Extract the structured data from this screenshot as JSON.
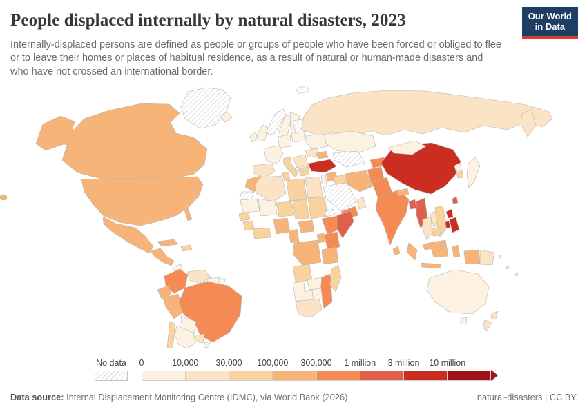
{
  "header": {
    "title": "People displaced internally by natural disasters, 2023",
    "subtitle_lines": [
      "Internally-displaced persons are defined as people or groups of people who have been forced or obliged to flee",
      "or to leave their homes or places of habitual residence, as a result of natural or human-made disasters and",
      "who have not crossed an international border."
    ],
    "logo": {
      "line1": "Our World",
      "line2": "in Data",
      "bg_color": "#1d3d63",
      "accent_color": "#dc3b2e"
    }
  },
  "legend": {
    "no_data_label": "No data",
    "tick_labels": [
      "0",
      "10,000",
      "30,000",
      "100,000",
      "300,000",
      "1 million",
      "3 million",
      "10 million"
    ],
    "bin_colors": [
      "#FDF2E1",
      "#FBE4C5",
      "#F9D29E",
      "#F7B478",
      "#F58A55",
      "#E0614B",
      "#CB2D21",
      "#A01217"
    ],
    "no_data_pattern": "gray-diagonal-hatch"
  },
  "footer": {
    "source_label": "Data source:",
    "source_text": " Internal Displacement Monitoring Centre (IDMC), via World Bank (2026)",
    "right_text": "natural-disasters | CC BY"
  },
  "chart_data": {
    "type": "choropleth-map",
    "title": "People displaced internally by natural disasters",
    "year": "2023",
    "bins": [
      "0–10,000",
      "10,000–30,000",
      "30,000–100,000",
      "100,000–300,000",
      "300,000–1 million",
      "1 million–3 million",
      "3 million–10 million",
      "10 million+",
      "No data"
    ],
    "countries": {
      "greenland": {
        "name": "Greenland",
        "bin": "no-data"
      },
      "iceland": {
        "name": "Iceland",
        "bin": 1
      },
      "svalbard": {
        "name": "Svalbard",
        "bin": "no-data"
      },
      "canada": {
        "name": "Canada",
        "bin": 4
      },
      "usa": {
        "name": "United States",
        "bin": 4
      },
      "mexico": {
        "name": "Mexico",
        "bin": 4
      },
      "central-america": {
        "name": "Central America",
        "bin": 4
      },
      "panama": {
        "name": "Panama",
        "bin": 1
      },
      "cuba": {
        "name": "Cuba",
        "bin": 4
      },
      "hispaniola": {
        "name": "Haiti & Dominican Republic",
        "bin": 3
      },
      "colombia": {
        "name": "Colombia",
        "bin": 5
      },
      "venezuela": {
        "name": "Venezuela",
        "bin": 2
      },
      "guyana": {
        "name": "Guyana & Suriname",
        "bin": 1
      },
      "french-guiana": {
        "name": "French Guiana",
        "bin": "no-data"
      },
      "ecuador": {
        "name": "Ecuador",
        "bin": 4
      },
      "peru": {
        "name": "Peru",
        "bin": 4
      },
      "brazil": {
        "name": "Brazil",
        "bin": 5
      },
      "bolivia": {
        "name": "Bolivia",
        "bin": 1
      },
      "paraguay": {
        "name": "Paraguay",
        "bin": 2
      },
      "chile": {
        "name": "Chile",
        "bin": 3
      },
      "argentina": {
        "name": "Argentina",
        "bin": 1
      },
      "uruguay": {
        "name": "Uruguay",
        "bin": 1
      },
      "uk": {
        "name": "United Kingdom",
        "bin": 1
      },
      "ireland": {
        "name": "Ireland",
        "bin": 1
      },
      "norway": {
        "name": "Norway",
        "bin": "no-data"
      },
      "sweden": {
        "name": "Sweden",
        "bin": 1
      },
      "finland": {
        "name": "Finland",
        "bin": 1
      },
      "germany": {
        "name": "Germany & Central Europe",
        "bin": 1
      },
      "france": {
        "name": "France",
        "bin": 1
      },
      "spain": {
        "name": "Spain & Portugal",
        "bin": 2
      },
      "italy": {
        "name": "Italy",
        "bin": 3
      },
      "balkans": {
        "name": "Balkans",
        "bin": 2
      },
      "greece": {
        "name": "Greece",
        "bin": 3
      },
      "poland": {
        "name": "Poland",
        "bin": 1
      },
      "baltics": {
        "name": "Belarus & Baltics",
        "bin": "no-data"
      },
      "ukraine": {
        "name": "Ukraine",
        "bin": 1
      },
      "romania": {
        "name": "Romania",
        "bin": 2
      },
      "russia": {
        "name": "Russia",
        "bin": 2
      },
      "kazakhstan": {
        "name": "Kazakhstan",
        "bin": 1
      },
      "central-asia": {
        "name": "Turkmenistan & Uzbekistan",
        "bin": "no-data"
      },
      "caucasus": {
        "name": "Caucasus",
        "bin": 4
      },
      "turkey": {
        "name": "Turkey",
        "bin": 7
      },
      "syria": {
        "name": "Syria",
        "bin": 4
      },
      "levant": {
        "name": "Israel & Jordan",
        "bin": 1
      },
      "iraq": {
        "name": "Iraq",
        "bin": 3
      },
      "saudi": {
        "name": "Saudi Arabia",
        "bin": "no-data"
      },
      "yemen": {
        "name": "Yemen",
        "bin": 5
      },
      "oman": {
        "name": "Oman",
        "bin": 2
      },
      "iran": {
        "name": "Iran",
        "bin": 4
      },
      "afghanistan": {
        "name": "Afghanistan",
        "bin": 5
      },
      "kyrgyz": {
        "name": "Kyrgyzstan & Tajikistan",
        "bin": 5
      },
      "pakistan": {
        "name": "Pakistan",
        "bin": 5
      },
      "india": {
        "name": "India",
        "bin": 5
      },
      "sri-lanka": {
        "name": "Sri Lanka",
        "bin": 4
      },
      "nepal": {
        "name": "Nepal",
        "bin": 4
      },
      "bangladesh": {
        "name": "Bangladesh",
        "bin": 6
      },
      "myanmar": {
        "name": "Myanmar",
        "bin": 6
      },
      "thailand": {
        "name": "Thailand",
        "bin": 2
      },
      "laos": {
        "name": "Laos",
        "bin": 2
      },
      "vietnam": {
        "name": "Vietnam",
        "bin": 3
      },
      "cambodia": {
        "name": "Cambodia",
        "bin": 3
      },
      "malaysia": {
        "name": "Malaysia",
        "bin": 4
      },
      "china": {
        "name": "China",
        "bin": 7
      },
      "mongolia": {
        "name": "Mongolia",
        "bin": 1
      },
      "n-korea": {
        "name": "North Korea",
        "bin": 1
      },
      "s-korea": {
        "name": "South Korea",
        "bin": 3
      },
      "japan": {
        "name": "Japan",
        "bin": 1
      },
      "taiwan": {
        "name": "Taiwan",
        "bin": 6
      },
      "philippines": {
        "name": "Philippines",
        "bin": 7
      },
      "indonesia": {
        "name": "Indonesia",
        "bin": 4
      },
      "png": {
        "name": "Papua New Guinea",
        "bin": 2
      },
      "australia": {
        "name": "Australia",
        "bin": 1
      },
      "nz": {
        "name": "New Zealand",
        "bin": 2
      },
      "pacific": {
        "name": "Pacific Islands",
        "bin": 2
      },
      "morocco": {
        "name": "Morocco",
        "bin": 4
      },
      "w-sahara": {
        "name": "Western Sahara",
        "bin": "no-data"
      },
      "algeria": {
        "name": "Algeria",
        "bin": 2
      },
      "tunisia": {
        "name": "Tunisia",
        "bin": 3
      },
      "libya": {
        "name": "Libya",
        "bin": 3
      },
      "egypt": {
        "name": "Egypt",
        "bin": 2
      },
      "mauritania": {
        "name": "Mauritania",
        "bin": 1
      },
      "mali": {
        "name": "Mali",
        "bin": 1
      },
      "niger": {
        "name": "Niger",
        "bin": 3
      },
      "chad": {
        "name": "Chad",
        "bin": 3
      },
      "sudan": {
        "name": "Sudan",
        "bin": 3
      },
      "eritrea": {
        "name": "Eritrea",
        "bin": "no-data"
      },
      "senegal": {
        "name": "Senegal",
        "bin": 3
      },
      "guinea": {
        "name": "Guinea",
        "bin": 3
      },
      "ghana": {
        "name": "Côte d'Ivoire & Ghana",
        "bin": 3
      },
      "nigeria": {
        "name": "Nigeria",
        "bin": 4
      },
      "cameroon": {
        "name": "Cameroon",
        "bin": 4
      },
      "car": {
        "name": "Central African Republic",
        "bin": 4
      },
      "ethiopia": {
        "name": "Ethiopia",
        "bin": 5
      },
      "somalia": {
        "name": "Somalia",
        "bin": 6
      },
      "kenya": {
        "name": "Kenya",
        "bin": 5
      },
      "uganda": {
        "name": "Uganda",
        "bin": 4
      },
      "drc": {
        "name": "Democratic Republic of Congo",
        "bin": 4
      },
      "tanzania": {
        "name": "Tanzania",
        "bin": 4
      },
      "angola": {
        "name": "Angola",
        "bin": 3
      },
      "zambia": {
        "name": "Zambia",
        "bin": 1
      },
      "mozambique": {
        "name": "Mozambique",
        "bin": 5
      },
      "zimbabwe": {
        "name": "Zimbabwe",
        "bin": 1
      },
      "botswana": {
        "name": "Botswana",
        "bin": 1
      },
      "namibia": {
        "name": "Namibia",
        "bin": 1
      },
      "south-africa": {
        "name": "South Africa",
        "bin": 2
      },
      "madagascar": {
        "name": "Madagascar",
        "bin": 3
      }
    }
  }
}
